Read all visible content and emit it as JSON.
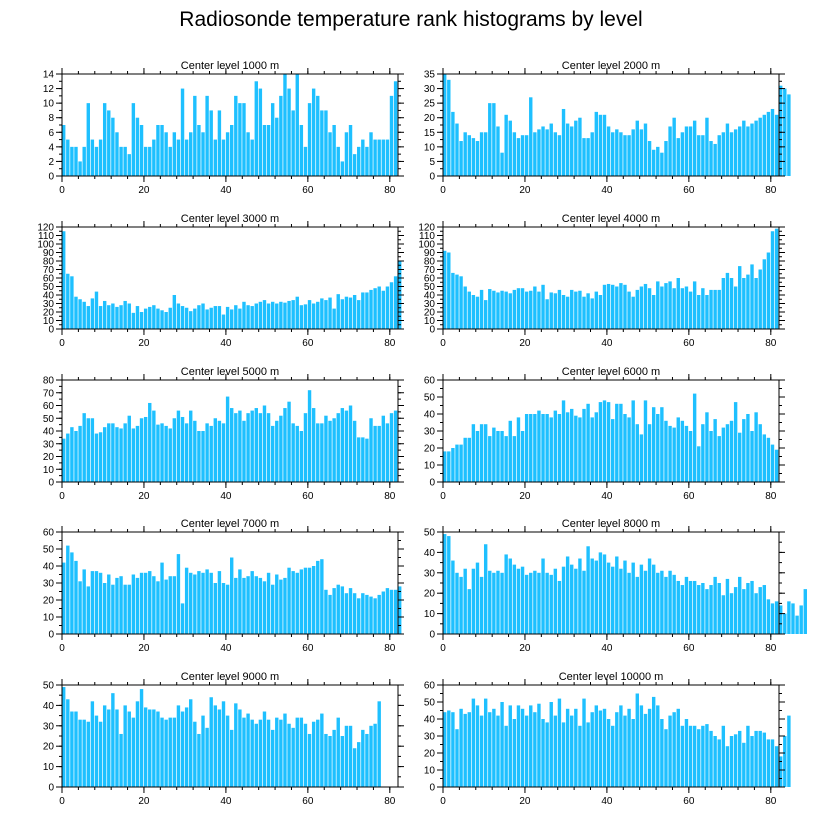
{
  "title": "Radiosonde temperature rank histograms by level",
  "colors": {
    "bar": "#1ec0ff",
    "axis": "#000000"
  },
  "chart_data": [
    {
      "type": "bar",
      "title": "Center level 1000 m",
      "xlim": [
        0,
        82
      ],
      "ylim": [
        0,
        14
      ],
      "xticks": [
        0,
        20,
        40,
        60,
        80
      ],
      "yticks": [
        0,
        2,
        4,
        6,
        8,
        10,
        12,
        14
      ],
      "values": [
        7,
        5,
        4,
        4,
        2,
        4,
        10,
        5,
        4,
        5,
        10,
        9,
        8,
        6,
        4,
        4,
        3,
        10,
        8,
        7,
        4,
        4,
        5,
        7,
        7,
        6,
        4,
        6,
        5,
        12,
        5,
        6,
        11,
        7,
        6,
        11,
        9,
        5,
        9,
        5,
        6,
        7,
        11,
        10,
        10,
        6,
        5,
        13,
        12,
        7,
        7,
        10,
        8,
        11,
        14,
        12,
        9,
        14,
        7,
        4,
        10,
        12,
        11,
        9,
        9,
        6,
        7,
        4,
        2,
        6,
        7,
        3,
        4,
        5,
        4,
        6,
        5,
        5,
        5,
        5,
        11,
        13
      ]
    },
    {
      "type": "bar",
      "title": "Center level 2000 m",
      "xlim": [
        0,
        82
      ],
      "ylim": [
        0,
        35
      ],
      "xticks": [
        0,
        20,
        40,
        60,
        80
      ],
      "yticks": [
        0,
        5,
        10,
        15,
        20,
        25,
        30,
        35
      ],
      "values": [
        35,
        33,
        22,
        18,
        12,
        15,
        14,
        13,
        12,
        15,
        15,
        25,
        25,
        17,
        8,
        21,
        19,
        15,
        13,
        14,
        14,
        27,
        15,
        16,
        17,
        16,
        18,
        15,
        14,
        23,
        18,
        17,
        19,
        20,
        13,
        13,
        15,
        22,
        21,
        21,
        17,
        15,
        16,
        15,
        14,
        14,
        16,
        19,
        16,
        18,
        12,
        9,
        10,
        8,
        12,
        17,
        20,
        13,
        15,
        17,
        17,
        19,
        14,
        14,
        20,
        12,
        11,
        14,
        15,
        18,
        15,
        16,
        17,
        19,
        17,
        18,
        19,
        20,
        21,
        22,
        23,
        21,
        31,
        30,
        28
      ]
    },
    {
      "type": "bar",
      "title": "Center level 3000 m",
      "xlim": [
        0,
        82
      ],
      "ylim": [
        0,
        120
      ],
      "xticks": [
        0,
        20,
        40,
        60,
        80
      ],
      "yticks": [
        0,
        10,
        20,
        30,
        40,
        50,
        60,
        70,
        80,
        90,
        100,
        110,
        120
      ],
      "values": [
        115,
        65,
        62,
        38,
        35,
        32,
        27,
        36,
        44,
        27,
        33,
        28,
        30,
        26,
        28,
        33,
        30,
        19,
        27,
        20,
        24,
        26,
        28,
        24,
        22,
        20,
        25,
        40,
        30,
        27,
        25,
        21,
        24,
        28,
        30,
        23,
        25,
        27,
        27,
        17,
        26,
        23,
        28,
        24,
        32,
        28,
        27,
        30,
        32,
        34,
        30,
        32,
        30,
        32,
        31,
        33,
        34,
        38,
        28,
        29,
        34,
        30,
        32,
        36,
        34,
        37,
        24,
        41,
        35,
        38,
        37,
        40,
        34,
        43,
        43,
        46,
        48,
        50,
        45,
        50,
        55,
        62,
        80
      ]
    },
    {
      "type": "bar",
      "title": "Center level 4000 m",
      "xlim": [
        0,
        82
      ],
      "ylim": [
        0,
        120
      ],
      "xticks": [
        0,
        20,
        40,
        60,
        80
      ],
      "yticks": [
        0,
        10,
        20,
        30,
        40,
        50,
        60,
        70,
        80,
        90,
        100,
        110,
        120
      ],
      "values": [
        92,
        90,
        66,
        64,
        62,
        50,
        44,
        40,
        38,
        46,
        34,
        47,
        45,
        43,
        45,
        44,
        42,
        46,
        48,
        48,
        44,
        45,
        50,
        44,
        52,
        35,
        43,
        42,
        46,
        40,
        38,
        46,
        44,
        45,
        38,
        42,
        36,
        44,
        40,
        52,
        53,
        52,
        50,
        54,
        52,
        44,
        38,
        46,
        50,
        53,
        48,
        40,
        56,
        50,
        54,
        56,
        48,
        60,
        48,
        50,
        44,
        56,
        40,
        48,
        40,
        46,
        46,
        46,
        60,
        66,
        60,
        50,
        74,
        60,
        64,
        76,
        60,
        70,
        82,
        90,
        115,
        118
      ]
    },
    {
      "type": "bar",
      "title": "Center level 5000 m",
      "xlim": [
        0,
        82
      ],
      "ylim": [
        0,
        80
      ],
      "xticks": [
        0,
        20,
        40,
        60,
        80
      ],
      "yticks": [
        0,
        10,
        20,
        30,
        40,
        50,
        60,
        70,
        80
      ],
      "values": [
        34,
        38,
        43,
        40,
        44,
        54,
        50,
        50,
        38,
        39,
        43,
        46,
        46,
        43,
        42,
        46,
        52,
        42,
        44,
        50,
        51,
        62,
        56,
        45,
        46,
        44,
        42,
        50,
        56,
        51,
        46,
        56,
        48,
        40,
        40,
        46,
        44,
        50,
        48,
        46,
        67,
        58,
        54,
        56,
        48,
        54,
        56,
        58,
        54,
        60,
        54,
        44,
        48,
        52,
        58,
        63,
        46,
        44,
        40,
        54,
        72,
        58,
        46,
        46,
        52,
        48,
        50,
        54,
        58,
        56,
        60,
        48,
        35,
        35,
        34,
        50,
        44,
        44,
        52,
        46,
        54,
        56
      ]
    },
    {
      "type": "bar",
      "title": "Center level 6000 m",
      "xlim": [
        0,
        82
      ],
      "ylim": [
        0,
        60
      ],
      "xticks": [
        0,
        20,
        40,
        60,
        80
      ],
      "yticks": [
        0,
        10,
        20,
        30,
        40,
        50,
        60
      ],
      "values": [
        18,
        18,
        20,
        22,
        22,
        26,
        26,
        34,
        30,
        34,
        34,
        27,
        32,
        30,
        30,
        27,
        36,
        27,
        38,
        30,
        40,
        40,
        40,
        42,
        40,
        40,
        38,
        42,
        40,
        48,
        41,
        43,
        39,
        38,
        43,
        46,
        38,
        41,
        47,
        48,
        47,
        37,
        46,
        46,
        40,
        38,
        48,
        34,
        28,
        48,
        34,
        44,
        40,
        44,
        36,
        33,
        32,
        38,
        36,
        33,
        30,
        52,
        21,
        34,
        41,
        30,
        37,
        27,
        32,
        34,
        36,
        47,
        29,
        37,
        40,
        30,
        41,
        34,
        28,
        26,
        22,
        19
      ]
    },
    {
      "type": "bar",
      "title": "Center level 7000 m",
      "xlim": [
        0,
        82
      ],
      "ylim": [
        0,
        60
      ],
      "xticks": [
        0,
        20,
        40,
        60,
        80
      ],
      "yticks": [
        0,
        10,
        20,
        30,
        40,
        50,
        60
      ],
      "values": [
        42,
        52,
        48,
        43,
        31,
        38,
        28,
        37,
        37,
        36,
        30,
        35,
        29,
        33,
        34,
        29,
        29,
        35,
        33,
        36,
        36,
        37,
        34,
        31,
        42,
        32,
        34,
        34,
        47,
        18,
        39,
        36,
        35,
        37,
        36,
        38,
        36,
        30,
        37,
        30,
        29,
        45,
        33,
        38,
        33,
        34,
        37,
        34,
        33,
        31,
        36,
        29,
        35,
        32,
        33,
        39,
        37,
        36,
        38,
        39,
        39,
        40,
        43,
        44,
        26,
        23,
        27,
        29,
        28,
        24,
        27,
        24,
        21,
        24,
        23,
        22,
        21,
        23,
        25,
        27,
        26,
        26,
        28
      ]
    },
    {
      "type": "bar",
      "title": "Center level 8000 m",
      "xlim": [
        0,
        82
      ],
      "ylim": [
        0,
        50
      ],
      "xticks": [
        0,
        20,
        40,
        60,
        80
      ],
      "yticks": [
        0,
        10,
        20,
        30,
        40,
        50
      ],
      "values": [
        49,
        48,
        36,
        30,
        28,
        32,
        22,
        32,
        35,
        28,
        44,
        31,
        30,
        31,
        30,
        39,
        37,
        34,
        32,
        33,
        29,
        30,
        31,
        30,
        37,
        30,
        29,
        32,
        26,
        33,
        38,
        34,
        32,
        37,
        31,
        43,
        37,
        36,
        40,
        39,
        35,
        33,
        38,
        32,
        36,
        30,
        35,
        28,
        34,
        31,
        37,
        34,
        30,
        31,
        28,
        31,
        29,
        26,
        24,
        28,
        26,
        26,
        24,
        25,
        22,
        24,
        28,
        25,
        19,
        27,
        20,
        23,
        28,
        22,
        25,
        26,
        20,
        23,
        24,
        17,
        15,
        16,
        14,
        10,
        16,
        15,
        9,
        14,
        22
      ]
    },
    {
      "type": "bar",
      "title": "Center level 9000 m",
      "xlim": [
        0,
        82
      ],
      "ylim": [
        0,
        50
      ],
      "xticks": [
        0,
        20,
        40,
        60,
        80
      ],
      "yticks": [
        0,
        10,
        20,
        30,
        40,
        50
      ],
      "values": [
        49,
        43,
        37,
        37,
        33,
        33,
        32,
        42,
        35,
        32,
        40,
        38,
        46,
        38,
        26,
        40,
        37,
        34,
        42,
        48,
        39,
        38,
        38,
        37,
        34,
        33,
        34,
        34,
        40,
        37,
        39,
        43,
        32,
        26,
        35,
        29,
        44,
        40,
        38,
        42,
        35,
        28,
        41,
        38,
        34,
        36,
        33,
        31,
        33,
        37,
        33,
        28,
        34,
        33,
        36,
        31,
        29,
        34,
        34,
        31,
        26,
        32,
        33,
        36,
        26,
        25,
        28,
        34,
        25,
        30,
        30,
        19,
        22,
        28,
        26,
        30,
        31,
        42
      ]
    },
    {
      "type": "bar",
      "title": "Center level 10000 m",
      "xlim": [
        0,
        82
      ],
      "ylim": [
        0,
        60
      ],
      "xticks": [
        0,
        20,
        40,
        60,
        80
      ],
      "yticks": [
        0,
        10,
        20,
        30,
        40,
        50,
        60
      ],
      "values": [
        44,
        45,
        44,
        34,
        46,
        43,
        44,
        52,
        48,
        42,
        52,
        44,
        46,
        42,
        50,
        36,
        48,
        40,
        48,
        46,
        42,
        48,
        44,
        49,
        40,
        38,
        50,
        42,
        52,
        38,
        46,
        42,
        46,
        36,
        52,
        38,
        44,
        48,
        45,
        46,
        40,
        36,
        44,
        48,
        42,
        46,
        40,
        55,
        48,
        43,
        46,
        53,
        48,
        40,
        34,
        42,
        44,
        46,
        36,
        40,
        36,
        36,
        34,
        36,
        37,
        33,
        30,
        28,
        36,
        24,
        30,
        31,
        33,
        26,
        36,
        30,
        33,
        33,
        32,
        28,
        28,
        24,
        18,
        30,
        42
      ]
    }
  ]
}
